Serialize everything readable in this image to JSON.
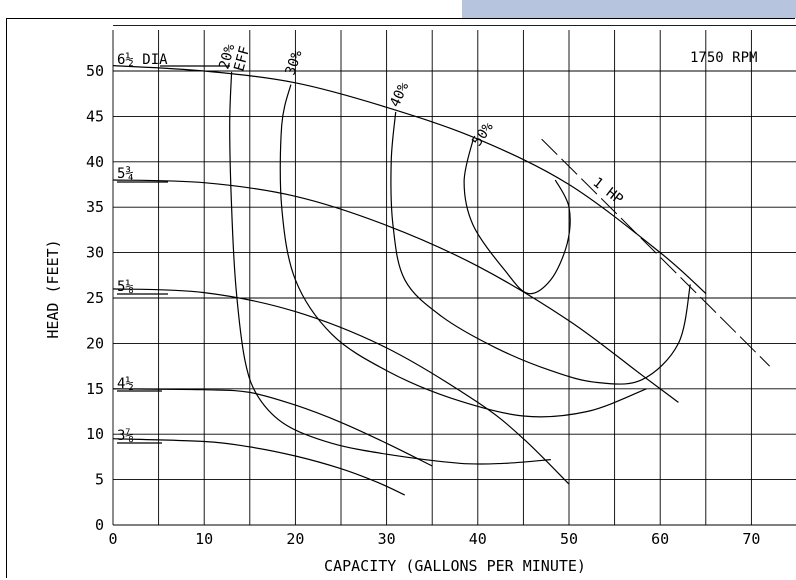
{
  "chart_data": {
    "type": "line",
    "title": "",
    "speed_label": "1750 RPM",
    "xlabel": "CAPACITY (GALLONS PER MINUTE)",
    "ylabel": "HEAD (FEET)",
    "xlim": [
      0,
      75
    ],
    "ylim": [
      0,
      55
    ],
    "x_ticks": [
      "0",
      "10",
      "20",
      "30",
      "40",
      "50",
      "60",
      "70"
    ],
    "y_ticks": [
      "0",
      "5",
      "10",
      "15",
      "20",
      "25",
      "30",
      "35",
      "40",
      "45",
      "50"
    ],
    "grid": true,
    "impeller_curves": [
      {
        "name": "6½ DIA",
        "x": [
          0,
          10,
          20,
          30,
          40,
          50,
          60,
          65
        ],
        "y": [
          50.6,
          50,
          48.7,
          46,
          42.5,
          37.5,
          30,
          25.5
        ]
      },
      {
        "name": "5¾",
        "x": [
          0,
          10,
          20,
          30,
          40,
          50,
          58,
          62
        ],
        "y": [
          38,
          37.7,
          36.2,
          33,
          28.5,
          22.5,
          16.5,
          13.5
        ]
      },
      {
        "name": "5⅛",
        "x": [
          0,
          10,
          20,
          30,
          40,
          45,
          50
        ],
        "y": [
          26,
          25.6,
          23.5,
          19.5,
          13.5,
          9.5,
          4.5
        ]
      },
      {
        "name": "4½",
        "x": [
          0,
          10,
          15,
          20,
          25,
          30,
          35
        ],
        "y": [
          15,
          14.9,
          14.6,
          13.2,
          11.3,
          9,
          6.5
        ]
      },
      {
        "name": "3⅞",
        "x": [
          0,
          10,
          15,
          20,
          25,
          29,
          32
        ],
        "y": [
          9.5,
          9.2,
          8.6,
          7.6,
          6.2,
          4.7,
          3.3
        ]
      }
    ],
    "efficiency_curves": [
      {
        "name": "20% EFF",
        "x": [
          13,
          12.8,
          13,
          13.5,
          14.5,
          16,
          19,
          24,
          30,
          38,
          43,
          48
        ],
        "y": [
          49.9,
          44,
          35,
          26,
          18,
          14,
          11,
          9,
          7.8,
          6.8,
          6.8,
          7.2
        ]
      },
      {
        "name": "30%",
        "x": [
          19.5,
          18.5,
          18.5,
          20,
          24,
          30,
          37,
          45,
          52,
          58.5
        ],
        "y": [
          48.5,
          44,
          35,
          27,
          21,
          17,
          14,
          12,
          12.5,
          15
        ]
      },
      {
        "name": "40%",
        "x": [
          31,
          30.5,
          30.7,
          32,
          36,
          42,
          48,
          53,
          58,
          62,
          63.3
        ],
        "y": [
          45.5,
          40,
          33,
          27,
          23,
          19.5,
          17,
          15.7,
          16,
          20,
          26.5
        ]
      },
      {
        "name": "50%",
        "x": [
          39.5,
          38.5,
          39.5,
          43,
          45.5,
          48,
          49.8,
          50,
          48.5
        ],
        "y": [
          42.5,
          37.8,
          33,
          28,
          25.5,
          27,
          31,
          35,
          38
        ]
      }
    ],
    "efficiency_labels": [
      "20%",
      "EFF",
      "30%",
      "40%",
      "50%"
    ],
    "power_lines": [
      {
        "name": "1 HP",
        "x": [
          47,
          72
        ],
        "y": [
          42.5,
          17.5
        ]
      }
    ],
    "diameter_labels": [
      "6½ DIA",
      "5¾",
      "5⅛",
      "4½",
      "3⅞"
    ]
  }
}
